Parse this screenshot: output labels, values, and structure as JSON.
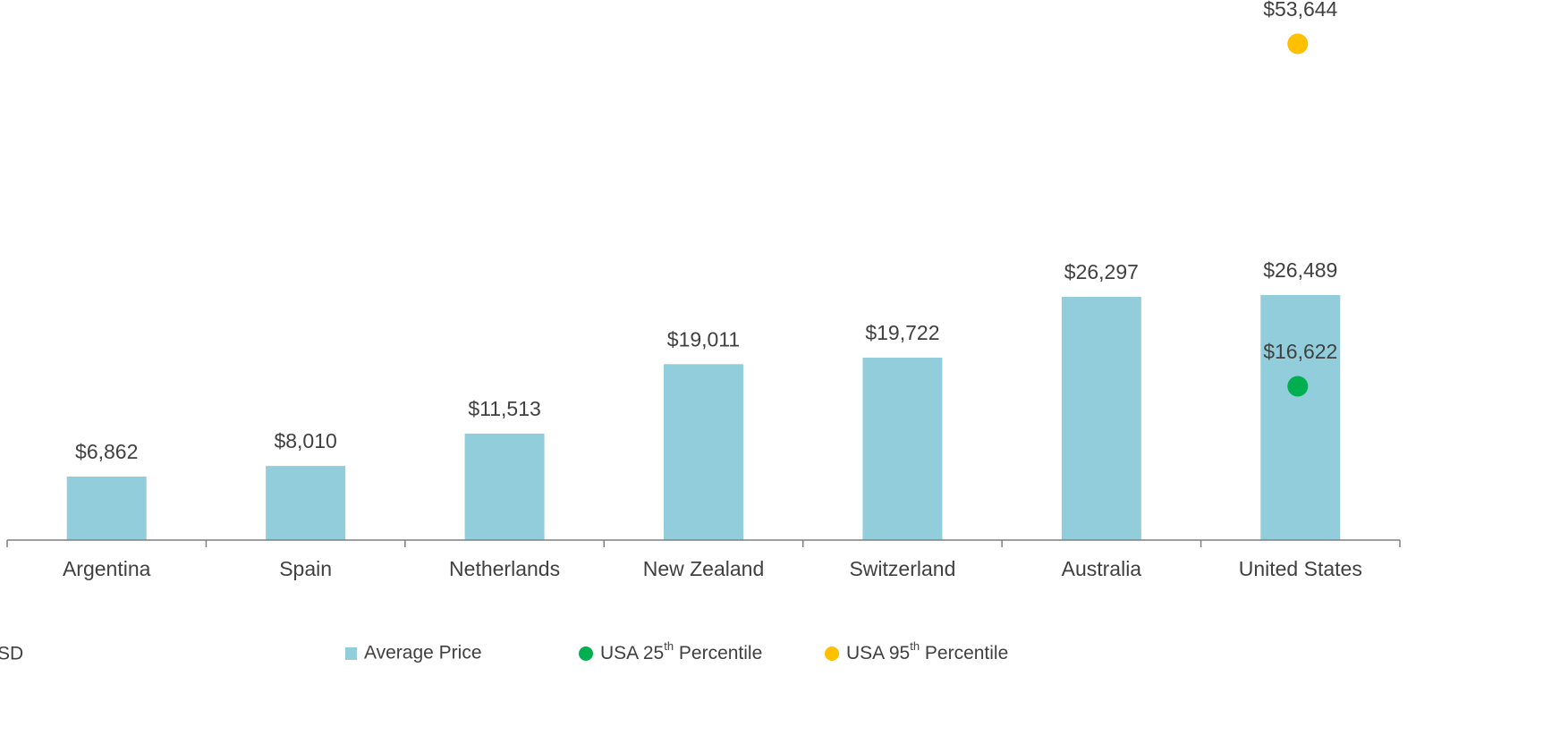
{
  "chart_data": {
    "type": "bar",
    "note": "SD",
    "categories": [
      "Argentina",
      "Spain",
      "Netherlands",
      "New Zealand",
      "Switzerland",
      "Australia",
      "United States"
    ],
    "series": [
      {
        "name": "Average Price",
        "type": "bar",
        "color": "#92cddc",
        "values": [
          6862,
          8010,
          11513,
          19011,
          19722,
          26297,
          26489
        ],
        "value_labels": [
          "$6,862",
          "$8,010",
          "$11,513",
          "$19,011",
          "$19,722",
          "$26,297",
          "$26,489"
        ]
      },
      {
        "name": "USA 25th Percentile",
        "type": "scatter",
        "color": "#00b050",
        "values": [
          null,
          null,
          null,
          null,
          null,
          null,
          16622
        ],
        "value_labels": [
          null,
          null,
          null,
          null,
          null,
          null,
          "$16,622"
        ]
      },
      {
        "name": "USA 95th Percentile",
        "type": "scatter",
        "color": "#ffc000",
        "values": [
          null,
          null,
          null,
          null,
          null,
          null,
          53644
        ],
        "value_labels": [
          null,
          null,
          null,
          null,
          null,
          null,
          "$53,644"
        ]
      }
    ],
    "legend": "bottom"
  }
}
